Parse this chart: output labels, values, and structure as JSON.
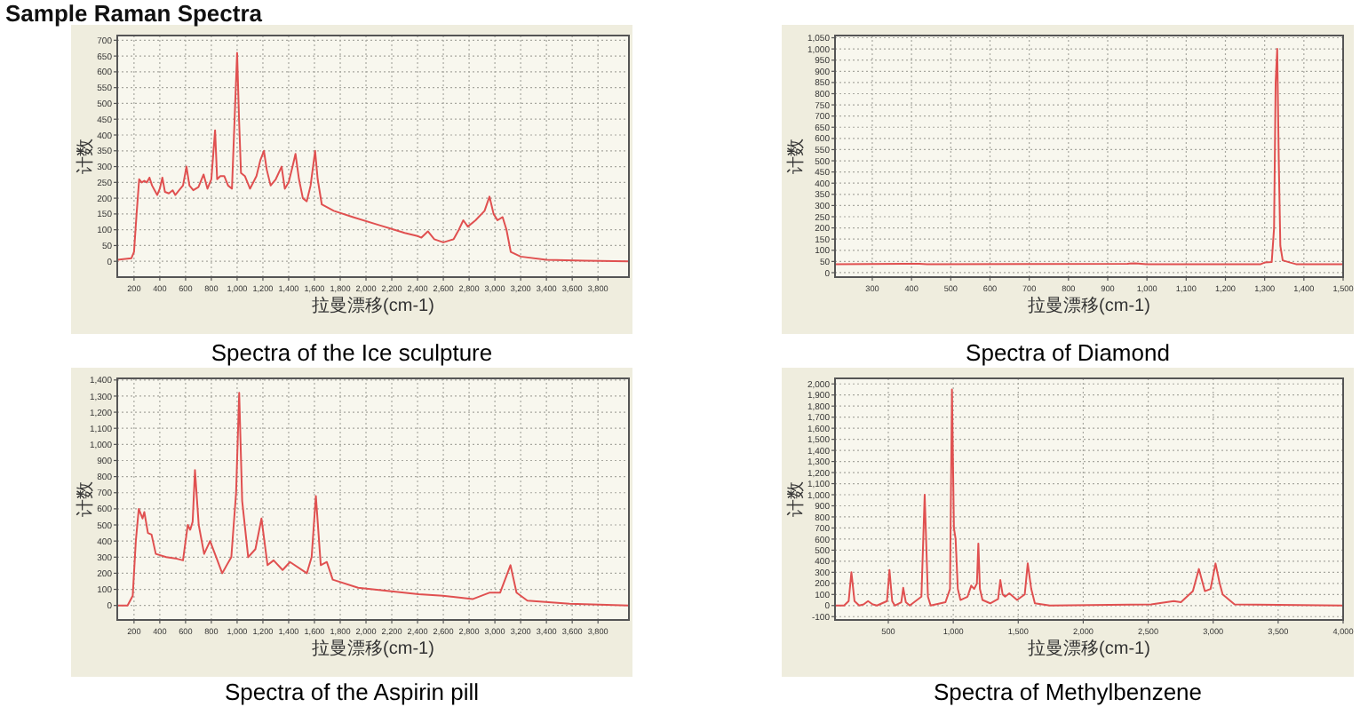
{
  "chart_data": [
    {
      "type": "line",
      "title": "Spectra of the Ice sculpture",
      "xlabel": "拉曼漂移(cm-1)",
      "ylabel": "计数",
      "annotations": [
        "Sample Raman Spectra"
      ],
      "grid": true,
      "xlim": [
        70,
        4040
      ],
      "ylim": [
        -50,
        715
      ],
      "xticks": [
        200,
        400,
        600,
        800,
        {
          "value": 1000,
          "label": "1,000"
        },
        {
          "value": 1200,
          "label": "1,200"
        },
        {
          "value": 1400,
          "label": "1,400"
        },
        {
          "value": 1600,
          "label": "1,600"
        },
        {
          "value": 1800,
          "label": "1,800"
        },
        {
          "value": 2000,
          "label": "2,000"
        },
        {
          "value": 2200,
          "label": "2,200"
        },
        {
          "value": 2400,
          "label": "2,400"
        },
        {
          "value": 2600,
          "label": "2,600"
        },
        {
          "value": 2800,
          "label": "2,800"
        },
        {
          "value": 3000,
          "label": "3,000"
        },
        {
          "value": 3200,
          "label": "3,200"
        },
        {
          "value": 3400,
          "label": "3,400"
        },
        {
          "value": 3600,
          "label": "3,600"
        },
        {
          "value": 3800,
          "label": "3,800"
        }
      ],
      "yticks": [
        0,
        50,
        100,
        150,
        200,
        250,
        300,
        350,
        400,
        450,
        500,
        550,
        600,
        650,
        700
      ],
      "series": [
        {
          "color": "#e05050",
          "x": [
            70,
            180,
            200,
            220,
            240,
            260,
            280,
            300,
            320,
            340,
            360,
            380,
            400,
            420,
            440,
            470,
            500,
            520,
            550,
            580,
            607,
            630,
            660,
            700,
            740,
            770,
            800,
            829,
            845,
            870,
            900,
            930,
            960,
            985,
            1000,
            1015,
            1030,
            1060,
            1100,
            1150,
            1180,
            1208,
            1230,
            1260,
            1300,
            1345,
            1370,
            1400,
            1430,
            1453,
            1480,
            1510,
            1540,
            1570,
            1605,
            1625,
            1657,
            1750,
            1900,
            2100,
            2300,
            2400,
            2430,
            2480,
            2530,
            2600,
            2680,
            2720,
            2755,
            2790,
            2850,
            2920,
            2958,
            2990,
            3020,
            3060,
            3090,
            3123,
            3200,
            3400,
            3700,
            4040
          ],
          "values": [
            5,
            10,
            30,
            150,
            260,
            250,
            255,
            250,
            265,
            240,
            225,
            210,
            230,
            265,
            220,
            215,
            225,
            210,
            225,
            240,
            300,
            240,
            225,
            235,
            275,
            230,
            260,
            415,
            260,
            270,
            270,
            240,
            230,
            500,
            660,
            450,
            280,
            270,
            230,
            270,
            320,
            350,
            290,
            240,
            260,
            300,
            230,
            250,
            300,
            340,
            260,
            200,
            190,
            240,
            350,
            260,
            180,
            160,
            140,
            115,
            90,
            80,
            75,
            95,
            70,
            60,
            70,
            100,
            130,
            110,
            130,
            160,
            205,
            150,
            130,
            140,
            100,
            30,
            15,
            5,
            2,
            0
          ]
        }
      ]
    },
    {
      "type": "line",
      "title": "Spectra of Diamond",
      "xlabel": "拉曼漂移(cm-1)",
      "ylabel": "计数",
      "grid": true,
      "xlim": [
        205,
        1500
      ],
      "ylim": [
        -20,
        1060
      ],
      "xticks": [
        300,
        400,
        500,
        600,
        700,
        800,
        900,
        {
          "value": 1000,
          "label": "1,000"
        },
        {
          "value": 1100,
          "label": "1,100"
        },
        {
          "value": 1200,
          "label": "1,200"
        },
        {
          "value": 1300,
          "label": "1,300"
        },
        {
          "value": 1400,
          "label": "1,400"
        },
        {
          "value": 1500,
          "label": "1,500"
        }
      ],
      "yticks": [
        0,
        50,
        100,
        150,
        200,
        250,
        300,
        350,
        400,
        450,
        500,
        550,
        600,
        650,
        700,
        750,
        800,
        850,
        900,
        950,
        {
          "value": 1000,
          "label": "1,000"
        },
        {
          "value": 1050,
          "label": "1,050"
        }
      ],
      "series": [
        {
          "color": "#e05050",
          "x": [
            205,
            420,
            440,
            950,
            970,
            1000,
            1290,
            1300,
            1318,
            1324,
            1328,
            1332,
            1336,
            1340,
            1346,
            1365,
            1380,
            1500
          ],
          "values": [
            38,
            40,
            38,
            40,
            42,
            38,
            38,
            45,
            48,
            200,
            850,
            1000,
            500,
            120,
            55,
            45,
            38,
            38
          ]
        }
      ]
    },
    {
      "type": "line",
      "title": "Spectra of the Aspirin pill",
      "xlabel": "拉曼漂移(cm-1)",
      "ylabel": "计数",
      "grid": true,
      "xlim": [
        70,
        4040
      ],
      "ylim": [
        -90,
        1410
      ],
      "xticks": [
        200,
        400,
        600,
        800,
        {
          "value": 1000,
          "label": "1,000"
        },
        {
          "value": 1200,
          "label": "1,200"
        },
        {
          "value": 1400,
          "label": "1,400"
        },
        {
          "value": 1600,
          "label": "1,600"
        },
        {
          "value": 1800,
          "label": "1,800"
        },
        {
          "value": 2000,
          "label": "2,000"
        },
        {
          "value": 2200,
          "label": "2,200"
        },
        {
          "value": 2400,
          "label": "2,400"
        },
        {
          "value": 2600,
          "label": "2,600"
        },
        {
          "value": 2800,
          "label": "2,800"
        },
        {
          "value": 3000,
          "label": "3,000"
        },
        {
          "value": 3200,
          "label": "3,200"
        },
        {
          "value": 3400,
          "label": "3,400"
        },
        {
          "value": 3600,
          "label": "3,600"
        },
        {
          "value": 3800,
          "label": "3,800"
        }
      ],
      "yticks": [
        0,
        100,
        200,
        300,
        400,
        500,
        600,
        700,
        800,
        900,
        {
          "value": 1000,
          "label": "1,000"
        },
        {
          "value": 1100,
          "label": "1,100"
        },
        {
          "value": 1200,
          "label": "1,200"
        },
        {
          "value": 1300,
          "label": "1,300"
        },
        {
          "value": 1400,
          "label": "1,400"
        }
      ],
      "series": [
        {
          "color": "#e05050",
          "x": [
            70,
            150,
            190,
            214,
            237,
            266,
            280,
            308,
            336,
            369,
            450,
            533,
            580,
            617,
            636,
            655,
            673,
            702,
            744,
            790,
            838,
            884,
            955,
            992,
            1016,
            1039,
            1086,
            1142,
            1189,
            1236,
            1283,
            1353,
            1410,
            1541,
            1578,
            1611,
            1649,
            1696,
            1742,
            1939,
            2408,
            2596,
            2830,
            2961,
            3041,
            3121,
            3168,
            3252,
            3580,
            4040
          ],
          "values": [
            0,
            0,
            60,
            400,
            600,
            540,
            580,
            450,
            440,
            320,
            300,
            290,
            280,
            500,
            470,
            520,
            840,
            500,
            320,
            400,
            300,
            200,
            300,
            700,
            1320,
            650,
            300,
            350,
            540,
            250,
            280,
            220,
            270,
            200,
            300,
            680,
            250,
            270,
            160,
            110,
            70,
            60,
            40,
            80,
            80,
            250,
            80,
            30,
            10,
            0
          ]
        }
      ]
    },
    {
      "type": "line",
      "title": "Spectra of Methylbenzene",
      "xlabel": "拉曼漂移(cm-1)",
      "ylabel": "计数",
      "grid": true,
      "xlim": [
        90,
        4000
      ],
      "ylim": [
        -130,
        2050
      ],
      "xticks": [
        500,
        {
          "value": 1000,
          "label": "1,000"
        },
        {
          "value": 1500,
          "label": "1,500"
        },
        {
          "value": 2000,
          "label": "2,000"
        },
        {
          "value": 2500,
          "label": "2,500"
        },
        {
          "value": 3000,
          "label": "3,000"
        },
        {
          "value": 3500,
          "label": "3,500"
        },
        {
          "value": 4000,
          "label": "4,000"
        }
      ],
      "yticks": [
        {
          "value": -100,
          "label": "-100"
        },
        0,
        100,
        200,
        300,
        400,
        500,
        600,
        700,
        800,
        900,
        {
          "value": 1000,
          "label": "1,000"
        },
        {
          "value": 1100,
          "label": "1,100"
        },
        {
          "value": 1200,
          "label": "1,200"
        },
        {
          "value": 1300,
          "label": "1,300"
        },
        {
          "value": 1400,
          "label": "1,400"
        },
        {
          "value": 1500,
          "label": "1,500"
        },
        {
          "value": 1600,
          "label": "1,600"
        },
        {
          "value": 1700,
          "label": "1,700"
        },
        {
          "value": 1800,
          "label": "1,800"
        },
        {
          "value": 1900,
          "label": "1,900"
        },
        {
          "value": 2000,
          "label": "2,000"
        }
      ],
      "series": [
        {
          "color": "#e05050",
          "x": [
            90,
            160,
            195,
            216,
            240,
            276,
            310,
            344,
            380,
            413,
            490,
            509,
            530,
            550,
            600,
            615,
            635,
            665,
            755,
            780,
            805,
            826,
            940,
            975,
            990,
            1005,
            1018,
            1035,
            1055,
            1110,
            1138,
            1161,
            1182,
            1193,
            1205,
            1225,
            1284,
            1345,
            1362,
            1380,
            1399,
            1431,
            1491,
            1550,
            1573,
            1600,
            1628,
            1743,
            2523,
            2697,
            2752,
            2844,
            2890,
            2936,
            2980,
            3018,
            3050,
            3073,
            3165,
            4000
          ],
          "values": [
            0,
            0,
            40,
            300,
            40,
            0,
            10,
            40,
            10,
            0,
            40,
            320,
            40,
            0,
            30,
            160,
            30,
            0,
            80,
            1000,
            80,
            0,
            30,
            150,
            1950,
            700,
            600,
            150,
            50,
            80,
            180,
            150,
            200,
            560,
            150,
            50,
            20,
            60,
            230,
            100,
            80,
            110,
            50,
            100,
            380,
            150,
            20,
            0,
            10,
            40,
            30,
            130,
            330,
            130,
            150,
            380,
            200,
            100,
            10,
            0
          ]
        }
      ]
    }
  ]
}
